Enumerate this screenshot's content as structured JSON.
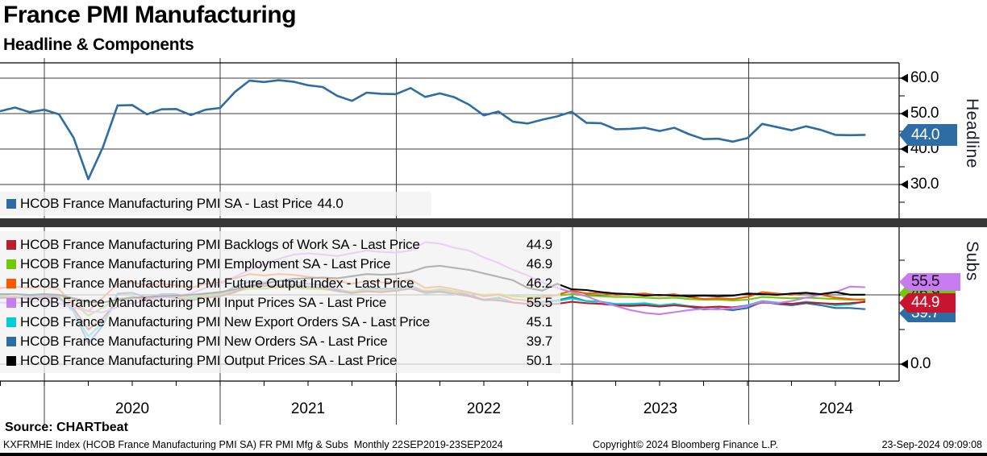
{
  "header": {
    "title": "France PMI Manufacturing",
    "subtitle": "Headline & Components"
  },
  "panels": {
    "top_axis_label": "Headline",
    "bottom_axis_label": "Subs"
  },
  "source_label": "Source: CHARTbeat",
  "footer": {
    "left": "KXFRMHE Index (HCOB France Manufacturing PMI SA) FR PMI Mfg & Subs  Monthly 22SEP2019-23SEP2024",
    "center": "Copyright© 2024 Bloomberg Finance L.P.",
    "right": "23-Sep-2024 09:09:08"
  },
  "chart_data": [
    {
      "type": "line",
      "title": "Headline",
      "x_start": "2019-10",
      "x_end": "2024-09",
      "frequency": "monthly",
      "x_tick_labels": [
        "2020",
        "2021",
        "2022",
        "2023",
        "2024"
      ],
      "ylim": [
        24,
        64
      ],
      "yticks": [
        30.0,
        40.0,
        50.0,
        60.0
      ],
      "grid": true,
      "legend_position": "inside-bottom-left",
      "series": [
        {
          "name": "HCOB France Manufacturing PMI SA - Last Price",
          "last_price": "44.0",
          "color": "#2E6DA4",
          "values": [
            50.7,
            51.7,
            50.4,
            51.1,
            49.8,
            43.2,
            31.5,
            40.6,
            52.3,
            52.4,
            49.8,
            51.2,
            51.3,
            49.6,
            51.1,
            51.6,
            56.1,
            59.3,
            58.9,
            59.4,
            59.0,
            58.0,
            57.5,
            55.0,
            53.6,
            55.9,
            55.6,
            55.5,
            57.2,
            54.7,
            55.7,
            54.6,
            52.5,
            49.5,
            50.6,
            47.7,
            47.2,
            48.3,
            49.2,
            50.5,
            47.4,
            47.3,
            45.6,
            45.7,
            46.0,
            45.1,
            46.0,
            44.2,
            42.8,
            42.9,
            42.1,
            43.1,
            47.1,
            46.2,
            45.3,
            46.4,
            45.4,
            44.0,
            43.9,
            44.0
          ]
        }
      ]
    },
    {
      "type": "line",
      "title": "Subs",
      "x_start": "2019-10",
      "x_end": "2024-09",
      "frequency": "monthly",
      "x_tick_labels": [
        "2020",
        "2021",
        "2022",
        "2023",
        "2024"
      ],
      "ylim": [
        0,
        100
      ],
      "yticks": [
        0.0,
        50.0
      ],
      "yticks_minor": [
        25.0,
        75.0
      ],
      "visible_ytick_labels": [
        "0.0"
      ],
      "grid": true,
      "legend_position": "inside-left",
      "series": [
        {
          "name": "HCOB France Manufacturing PMI Backlogs of Work SA - Last Price",
          "last_price": "44.9",
          "color": "#B5202F",
          "values": [
            48,
            48.5,
            47.5,
            48.5,
            48,
            40,
            25,
            33,
            46,
            48,
            47,
            48.5,
            48,
            46,
            48,
            49,
            52,
            56,
            56.5,
            57,
            57.5,
            56,
            55,
            53,
            51.5,
            52.5,
            52,
            53,
            54.5,
            52,
            52.5,
            51,
            49,
            46.5,
            46,
            44.5,
            43.5,
            43,
            43.5,
            45,
            44,
            43.5,
            42.5,
            42,
            42.5,
            41.5,
            42.5,
            41.5,
            41,
            41.5,
            41,
            42,
            44.5,
            44,
            43.5,
            44.5,
            44,
            43.5,
            44,
            44.9
          ]
        },
        {
          "name": "HCOB France Manufacturing PMI Employment SA - Last Price",
          "last_price": "46.9",
          "color": "#72C907",
          "values": [
            50,
            50.5,
            50,
            50.5,
            50,
            44,
            35,
            41,
            47,
            48.5,
            47.5,
            49,
            49.5,
            48.5,
            49.5,
            50,
            52.5,
            54.5,
            54.5,
            55.5,
            55,
            54.5,
            54,
            53,
            52.5,
            53.5,
            53,
            53.5,
            54.5,
            53,
            53.5,
            52.5,
            51.5,
            50,
            50.5,
            49,
            48.5,
            49,
            49.5,
            50.5,
            49.5,
            49,
            48.5,
            48.5,
            48,
            47.5,
            48,
            47,
            46.5,
            46.5,
            46,
            46.5,
            48.5,
            48,
            47.5,
            48,
            47.5,
            47,
            46.5,
            46.9
          ]
        },
        {
          "name": "HCOB France Manufacturing PMI Future Output Index - Last Price",
          "last_price": "46.2",
          "color": "#F85A00",
          "values": [
            55,
            56,
            55,
            56,
            54,
            43,
            38,
            48,
            58,
            59,
            57,
            58,
            57,
            55,
            58,
            59,
            62,
            65,
            64,
            65,
            64.5,
            63,
            62,
            60,
            58,
            60,
            59,
            59.5,
            61,
            55,
            56,
            54,
            52,
            49,
            50,
            47,
            46,
            48,
            50,
            53,
            51,
            51.5,
            50,
            50.5,
            51,
            49.5,
            50.5,
            48.5,
            47,
            47.5,
            47,
            48.5,
            52,
            51,
            50,
            51.5,
            50,
            48,
            47,
            46.2
          ]
        },
        {
          "name": "HCOB France Manufacturing PMI Input Prices SA - Last Price",
          "last_price": "55.5",
          "color": "#C77DF0",
          "values": [
            44.5,
            44,
            45,
            45.5,
            44,
            41,
            38,
            37.5,
            41,
            44,
            46,
            48,
            49,
            51,
            55,
            58,
            63,
            68,
            72,
            76,
            79,
            80,
            79,
            78,
            80,
            82,
            81,
            80.5,
            82,
            88,
            87,
            84,
            82,
            77,
            73,
            68,
            64,
            59,
            55,
            52,
            49,
            45,
            42,
            39,
            37,
            36,
            37.5,
            39,
            40,
            39.5,
            40.5,
            42,
            45,
            44,
            45.5,
            48,
            50,
            52,
            56,
            55.5
          ]
        },
        {
          "name": "HCOB France Manufacturing PMI New Export Orders SA - Last Price",
          "last_price": "45.1",
          "color": "#00CDD4",
          "values": [
            47.5,
            48,
            47,
            48,
            47.5,
            38,
            20,
            30,
            46,
            48.5,
            47,
            49,
            49.5,
            47.5,
            49.5,
            50,
            53.5,
            56.5,
            56,
            57,
            56.5,
            55.5,
            54.5,
            52.5,
            51,
            53,
            52.5,
            53,
            55,
            51,
            52,
            50.5,
            49,
            46,
            47,
            44.5,
            43.5,
            44.5,
            45.5,
            47.5,
            45.5,
            45,
            43.5,
            43.5,
            44,
            42.5,
            43.5,
            42,
            41,
            41.5,
            41,
            42.5,
            45.5,
            44.5,
            43.5,
            45,
            44,
            42.5,
            43,
            45.1
          ]
        },
        {
          "name": "HCOB France Manufacturing PMI New Orders SA - Last Price",
          "last_price": "39.7",
          "color": "#2E6DA4",
          "values": [
            49.5,
            50.5,
            49,
            50,
            48.5,
            38,
            15,
            28,
            51,
            51.5,
            48,
            50.5,
            50.5,
            47.5,
            50,
            50.5,
            56,
            59.5,
            59,
            60,
            59.5,
            58,
            57,
            54,
            52,
            55,
            54.5,
            54.5,
            56.5,
            52.5,
            54,
            52.5,
            50,
            46.5,
            48,
            44.5,
            43.5,
            45,
            46,
            48.5,
            45.5,
            45,
            43,
            43,
            43.5,
            42,
            43.5,
            41.5,
            39.5,
            40,
            39,
            40.5,
            45,
            43.5,
            42.5,
            44,
            42.5,
            40.5,
            40.5,
            39.7
          ]
        },
        {
          "name": "HCOB France Manufacturing PMI Output Prices SA - Last Price",
          "last_price": "50.1",
          "color": "#000000",
          "values": [
            50.5,
            50.5,
            50,
            50.5,
            50,
            47.5,
            45,
            44.5,
            46.5,
            48,
            48.5,
            49,
            49.5,
            50,
            51,
            52,
            54,
            56.5,
            58,
            60,
            61.5,
            62,
            62.5,
            62,
            63.5,
            65,
            64.5,
            65,
            66.5,
            70,
            71,
            69.5,
            68,
            65.5,
            63,
            60.5,
            55,
            53,
            58,
            54,
            53.5,
            52,
            51,
            50.5,
            49.5,
            50,
            49.5,
            49,
            49.5,
            49,
            49.5,
            51,
            50.5,
            50,
            51,
            51.5,
            50.5,
            52,
            50.1,
            50.1
          ]
        }
      ]
    }
  ]
}
